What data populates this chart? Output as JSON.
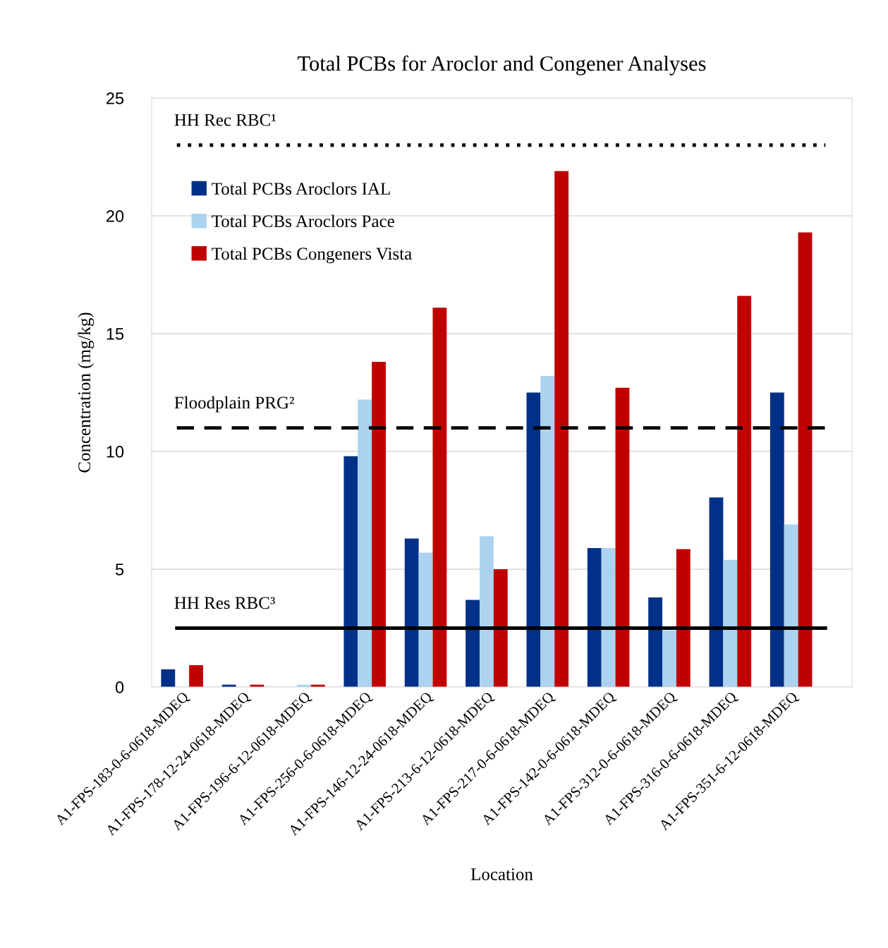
{
  "chart_data": {
    "type": "bar",
    "title": "Total PCBs for Aroclor and Congener Analyses",
    "xlabel": "Location",
    "ylabel": "Concentration (mg/kg)",
    "categories": [
      "A1-FPS-183-0-6-0618-MDEQ",
      "A1-FPS-178-12-24-0618-MDEQ",
      "A1-FPS-196-6-12-0618-MDEQ",
      "A1-FPS-256-0-6-0618-MDEQ",
      "A1-FPS-146-12-24-0618-MDEQ",
      "A1-FPS-213-6-12-0618-MDEQ",
      "A1-FPS-217-0-6-0618-MDEQ",
      "A1-FPS-142-0-6-0618-MDEQ",
      "A1-FPS-312-0-6-0618-MDEQ",
      "A1-FPS-316-0-6-0618-MDEQ",
      "A1-FPS-351-6-12-0618-MDEQ"
    ],
    "series": [
      {
        "name": "Total PCBs Aroclors IAL",
        "color": "#003087",
        "values": [
          0.75,
          0.1,
          null,
          9.8,
          6.3,
          3.7,
          12.5,
          5.9,
          3.8,
          8.05,
          12.5
        ]
      },
      {
        "name": "Total PCBs Aroclors Pace",
        "color": "#abd3f0",
        "values": [
          null,
          null,
          0.1,
          12.2,
          5.7,
          6.4,
          13.2,
          5.9,
          2.4,
          5.4,
          6.9
        ]
      },
      {
        "name": "Total PCBs Congeners Vista",
        "color": "#c00000",
        "values": [
          0.93,
          0.1,
          0.1,
          13.8,
          16.1,
          5.0,
          21.9,
          12.7,
          5.85,
          16.6,
          19.3
        ]
      }
    ],
    "ylim": [
      0,
      25
    ],
    "yticks": [
      0,
      5,
      10,
      15,
      20,
      25
    ],
    "grid": "y",
    "legend": "top left",
    "ref_lines": [
      {
        "axis": "y",
        "value": 23,
        "label": "HH Rec RBC¹",
        "color": "#000000",
        "line_style": "dotted"
      },
      {
        "axis": "y",
        "value": 11,
        "label": "Floodplain PRG²",
        "color": "#000000",
        "line_style": "dashed"
      },
      {
        "axis": "y",
        "value": 2.5,
        "label": "HH Res RBC³",
        "color": "#000000",
        "line_style": "solid"
      }
    ]
  }
}
